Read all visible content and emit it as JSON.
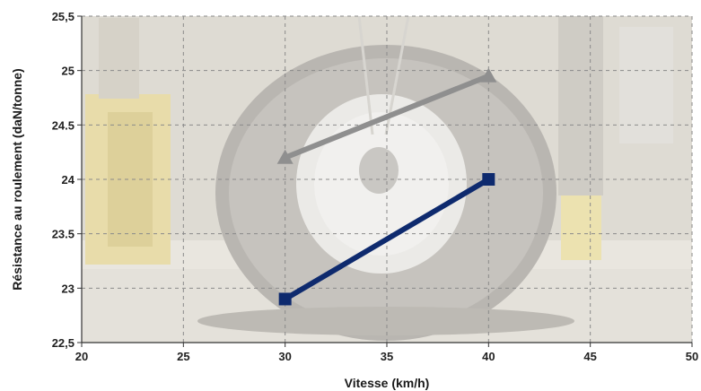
{
  "chart_data": {
    "type": "line",
    "title": "",
    "xlabel": "Vitesse (km/h)",
    "ylabel": "Résistance au roulement (daN/tonne)",
    "xlim": [
      20,
      50
    ],
    "ylim": [
      22.5,
      25.5
    ],
    "x_ticks": [
      20,
      25,
      30,
      35,
      40,
      45,
      50
    ],
    "y_ticks": [
      22.5,
      23,
      23.5,
      24,
      24.5,
      25,
      25.5
    ],
    "x_tick_labels": [
      "20",
      "25",
      "30",
      "35",
      "40",
      "45",
      "50"
    ],
    "y_tick_labels": [
      "22,5",
      "23",
      "23.5",
      "24",
      "24.5",
      "25",
      "25,5"
    ],
    "grid": true,
    "background": "photo of a tractor tire on a test rig (faded)",
    "series": [
      {
        "marker": "triangle",
        "color": "#8f8f8f",
        "x": [
          30,
          40
        ],
        "y": [
          24.2,
          24.95
        ]
      },
      {
        "marker": "square",
        "color": "#0e2a6e",
        "x": [
          30,
          40
        ],
        "y": [
          22.9,
          24.0
        ]
      }
    ]
  },
  "colors": {
    "grid": "#8a8a8a",
    "axis": "#333333"
  }
}
